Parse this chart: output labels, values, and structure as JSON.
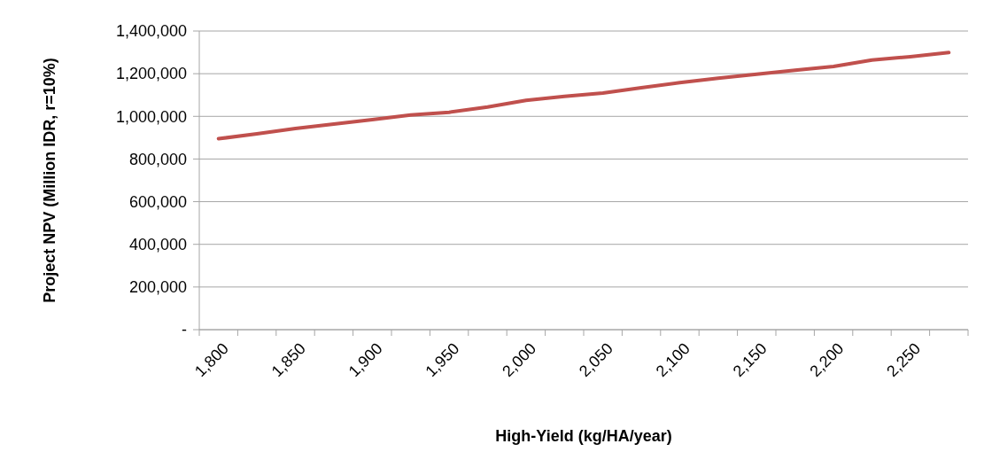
{
  "chart_data": {
    "type": "line",
    "xlabel": "High-Yield (kg/HA/year)",
    "ylabel": "Project NPV (Million IDR, r=10%)",
    "categories": [
      "1,800",
      null,
      "1,850",
      null,
      "1,900",
      null,
      "1,950",
      null,
      "2,000",
      null,
      "2,050",
      null,
      "2,100",
      null,
      "2,150",
      null,
      "2,200",
      null,
      "2,250",
      null
    ],
    "series": [
      {
        "color": "#c0504d",
        "values": [
          895000,
          918000,
          943000,
          964000,
          985000,
          1006000,
          1019000,
          1044000,
          1075000,
          1094000,
          1109000,
          1134000,
          1158000,
          1179000,
          1197000,
          1216000,
          1234000,
          1264000,
          1280000,
          1299000
        ]
      }
    ],
    "ylim": [
      0,
      1400000
    ],
    "yticks": [
      {
        "value": 0,
        "label": "-"
      },
      {
        "value": 200000,
        "label": "200,000"
      },
      {
        "value": 400000,
        "label": "400,000"
      },
      {
        "value": 600000,
        "label": "600,000"
      },
      {
        "value": 800000,
        "label": "800,000"
      },
      {
        "value": 1000000,
        "label": "1,000,000"
      },
      {
        "value": 1200000,
        "label": "1,200,000"
      },
      {
        "value": 1400000,
        "label": "1,400,000"
      }
    ],
    "grid": "y",
    "marker": "none",
    "line_style": "solid"
  }
}
